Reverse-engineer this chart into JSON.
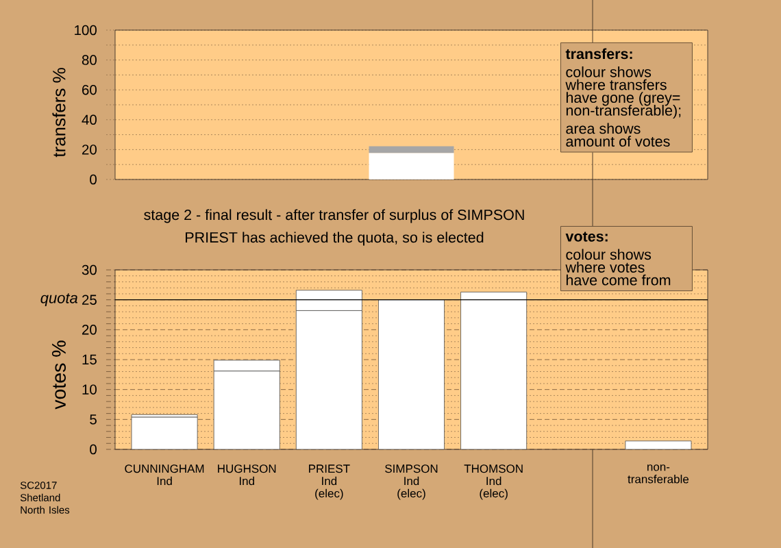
{
  "chart_data": [
    {
      "type": "bar",
      "ylabel": "transfers %",
      "categories": [
        null,
        null,
        null,
        null,
        null,
        null,
        null
      ],
      "stacked": true,
      "series": [
        {
          "color": "#ffffff",
          "values": [
            null,
            null,
            null,
            17.8,
            null,
            null,
            null
          ]
        },
        {
          "color": "#a6a6a6",
          "values": [
            null,
            null,
            null,
            4.4,
            null,
            null,
            null
          ]
        }
      ],
      "ylim": [
        0,
        100
      ],
      "yticks": [
        0,
        {
          "value": 10,
          "label": null
        },
        20,
        {
          "value": 30,
          "label": null
        },
        40,
        {
          "value": 50,
          "label": null
        },
        60,
        {
          "value": 70,
          "label": null
        },
        80,
        {
          "value": 90,
          "label": null
        },
        100
      ],
      "grid": "y",
      "annotations": [
        "transfers:",
        "colour shows where transfers have gone (grey= non-transferable);",
        "area shows amount of votes"
      ]
    },
    {
      "type": "bar",
      "title": "stage 2 - final result - after transfer of surplus of SIMPSON",
      "subtitle": "PRIEST has achieved the quota, so is elected",
      "ylabel": "votes %",
      "categories": [
        "CUNNINGHAM Ind",
        "HUGHSON Ind",
        "PRIEST Ind (elec)",
        "SIMPSON Ind (elec)",
        "THOMSON Ind (elec)",
        null,
        "non-transferable"
      ],
      "stacked": true,
      "series": [
        {
          "color": "#ffffff",
          "values": [
            5.4,
            13.1,
            23.2,
            25,
            26.3,
            null,
            1.4
          ]
        },
        {
          "color": "#ffffff",
          "values": [
            0.4,
            1.8,
            3.4,
            null,
            null,
            null,
            null
          ]
        }
      ],
      "ylim": [
        0,
        30
      ],
      "yticks": [
        0,
        {
          "value": 1,
          "label": null
        },
        {
          "value": 2,
          "label": null
        },
        {
          "value": 3,
          "label": null
        },
        {
          "value": 4,
          "label": null
        },
        5,
        {
          "value": 6,
          "label": null
        },
        {
          "value": 7,
          "label": null
        },
        {
          "value": 8,
          "label": null
        },
        {
          "value": 9,
          "label": null
        },
        10,
        {
          "value": 11,
          "label": null
        },
        {
          "value": 12,
          "label": null
        },
        {
          "value": 13,
          "label": null
        },
        {
          "value": 14,
          "label": null
        },
        15,
        {
          "value": 16,
          "label": null
        },
        {
          "value": 17,
          "label": null
        },
        {
          "value": 18,
          "label": null
        },
        {
          "value": 19,
          "label": null
        },
        20,
        {
          "value": 21,
          "label": null
        },
        {
          "value": 22,
          "label": null
        },
        {
          "value": 23,
          "label": null
        },
        {
          "value": 24,
          "label": null
        },
        25,
        {
          "value": 26,
          "label": null
        },
        {
          "value": 27,
          "label": null
        },
        {
          "value": 28,
          "label": null
        },
        {
          "value": 29,
          "label": null
        },
        30
      ],
      "grid": "y",
      "ref_lines": [
        {
          "axis": "y",
          "value": 25,
          "label": "quota",
          "color": "#000000"
        }
      ],
      "annotations": [
        "votes:",
        "colour shows where votes have come from",
        "SC2017 Shetland North Isles"
      ]
    }
  ]
}
